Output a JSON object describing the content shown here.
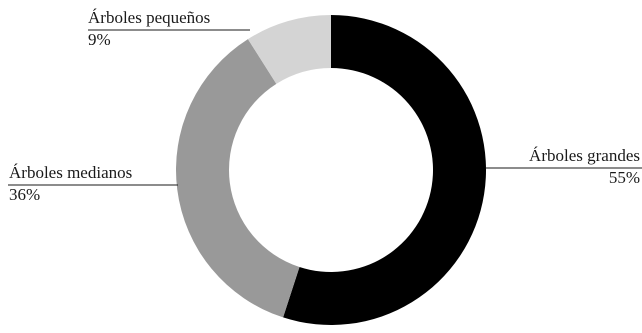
{
  "chart_data": {
    "type": "pie",
    "donut": true,
    "title": "",
    "slices": [
      {
        "label": "Árboles grandes",
        "value": 55,
        "value_label": "55%",
        "color": "#000000"
      },
      {
        "label": "Árboles medianos",
        "value": 36,
        "value_label": "36%",
        "color": "#999999"
      },
      {
        "label": "Árboles pequeños",
        "value": 9,
        "value_label": "9%",
        "color": "#d4d4d4"
      }
    ],
    "legend": "none",
    "start_angle": "12 o'clock",
    "direction": "clockwise"
  }
}
